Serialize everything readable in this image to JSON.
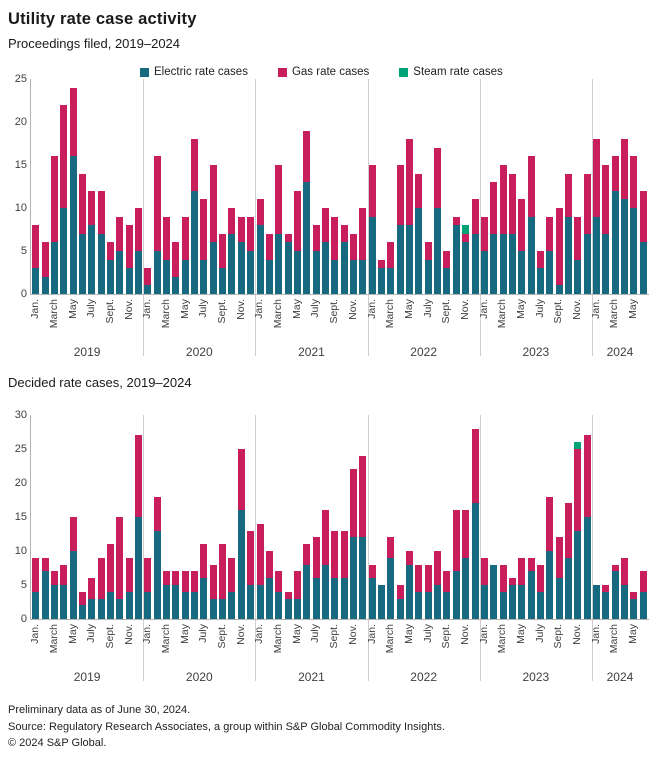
{
  "header": {
    "title": "Utility rate case activity"
  },
  "legend": [
    {
      "key": "electric",
      "label": "Electric rate cases",
      "color": "#16697e"
    },
    {
      "key": "gas",
      "label": "Gas rate cases",
      "color": "#c81e5b"
    },
    {
      "key": "steam",
      "label": "Steam rate cases",
      "color": "#00a377"
    }
  ],
  "colors": {
    "electric": "#16697e",
    "gas": "#c81e5b",
    "steam": "#00a377",
    "axis": "#b3b3b3",
    "divider": "#cfcfcf"
  },
  "footer": [
    "Preliminary data as of June 30, 2024.",
    "Source: Regulatory Research Associates, a group within S&P Global Commodity Insights.",
    "© 2024 S&P Global."
  ],
  "chart_data": [
    {
      "id": "filed",
      "type": "bar",
      "stacked": true,
      "title": "Proceedings filed, 2019–2024",
      "ylim": [
        0,
        25
      ],
      "yticks": [
        0,
        5,
        10,
        15,
        20,
        25
      ],
      "grid": false,
      "legend_position": "top",
      "month_tick_labels": [
        "Jan.",
        "March",
        "May",
        "July",
        "Sept.",
        "Nov."
      ],
      "series_names": [
        "Electric rate cases",
        "Gas rate cases",
        "Steam rate cases"
      ],
      "groups": [
        {
          "year": "2019",
          "electric": [
            3,
            2,
            6,
            10,
            16,
            7,
            8,
            7,
            4,
            5,
            3,
            5
          ],
          "gas": [
            5,
            4,
            10,
            12,
            8,
            7,
            4,
            5,
            2,
            4,
            5,
            5
          ]
        },
        {
          "year": "2020",
          "electric": [
            1,
            5,
            4,
            2,
            4,
            12,
            4,
            6,
            3,
            7,
            6,
            5
          ],
          "gas": [
            2,
            11,
            5,
            4,
            5,
            6,
            7,
            9,
            4,
            3,
            3,
            4
          ]
        },
        {
          "year": "2021",
          "electric": [
            8,
            4,
            7,
            6,
            5,
            13,
            5,
            6,
            4,
            6,
            4,
            4
          ],
          "gas": [
            3,
            3,
            8,
            1,
            7,
            6,
            3,
            4,
            5,
            2,
            3,
            6
          ]
        },
        {
          "year": "2022",
          "electric": [
            9,
            3,
            3,
            8,
            8,
            10,
            4,
            10,
            3,
            8,
            6,
            7
          ],
          "gas": [
            6,
            1,
            3,
            7,
            10,
            4,
            2,
            7,
            2,
            1,
            1,
            4
          ],
          "steam": [
            0,
            0,
            0,
            0,
            0,
            0,
            0,
            0,
            0,
            0,
            1,
            0
          ]
        },
        {
          "year": "2023",
          "electric": [
            5,
            7,
            7,
            7,
            5,
            9,
            3,
            5,
            1,
            9,
            4,
            7
          ],
          "gas": [
            4,
            6,
            8,
            7,
            6,
            7,
            2,
            4,
            9,
            5,
            5,
            7
          ]
        },
        {
          "year": "2024",
          "electric": [
            9,
            7,
            12,
            11,
            10,
            6
          ],
          "gas": [
            9,
            8,
            4,
            7,
            6,
            6
          ]
        }
      ]
    },
    {
      "id": "decided",
      "type": "bar",
      "stacked": true,
      "title": "Decided rate cases, 2019–2024",
      "ylim": [
        0,
        30
      ],
      "yticks": [
        0,
        5,
        10,
        15,
        20,
        25,
        30
      ],
      "grid": false,
      "month_tick_labels": [
        "Jan.",
        "March",
        "May",
        "July",
        "Sept.",
        "Nov."
      ],
      "series_names": [
        "Electric rate cases",
        "Gas rate cases",
        "Steam rate cases"
      ],
      "groups": [
        {
          "year": "2019",
          "electric": [
            4,
            7,
            5,
            5,
            10,
            2,
            3,
            3,
            4,
            3,
            4,
            15
          ],
          "gas": [
            5,
            2,
            2,
            3,
            5,
            2,
            3,
            6,
            7,
            12,
            5,
            12
          ]
        },
        {
          "year": "2020",
          "electric": [
            4,
            13,
            5,
            5,
            4,
            4,
            6,
            3,
            3,
            4,
            16,
            5
          ],
          "gas": [
            5,
            5,
            2,
            2,
            3,
            3,
            5,
            5,
            8,
            5,
            9,
            8
          ]
        },
        {
          "year": "2021",
          "electric": [
            5,
            6,
            4,
            3,
            3,
            8,
            6,
            8,
            6,
            6,
            12,
            12
          ],
          "gas": [
            9,
            4,
            3,
            1,
            4,
            3,
            6,
            8,
            7,
            7,
            10,
            12
          ]
        },
        {
          "year": "2022",
          "electric": [
            6,
            5,
            9,
            3,
            8,
            4,
            4,
            5,
            4,
            7,
            9,
            17
          ],
          "gas": [
            2,
            0,
            3,
            2,
            2,
            4,
            4,
            5,
            3,
            9,
            7,
            11
          ]
        },
        {
          "year": "2023",
          "electric": [
            5,
            8,
            4,
            5,
            5,
            7,
            4,
            10,
            6,
            9,
            13,
            15
          ],
          "gas": [
            4,
            0,
            4,
            1,
            4,
            2,
            4,
            8,
            6,
            8,
            12,
            12
          ],
          "steam": [
            0,
            0,
            0,
            0,
            0,
            0,
            0,
            0,
            0,
            0,
            1,
            0
          ]
        },
        {
          "year": "2024",
          "electric": [
            5,
            4,
            7,
            5,
            3,
            4
          ],
          "gas": [
            0,
            1,
            1,
            4,
            1,
            3
          ]
        }
      ]
    }
  ]
}
